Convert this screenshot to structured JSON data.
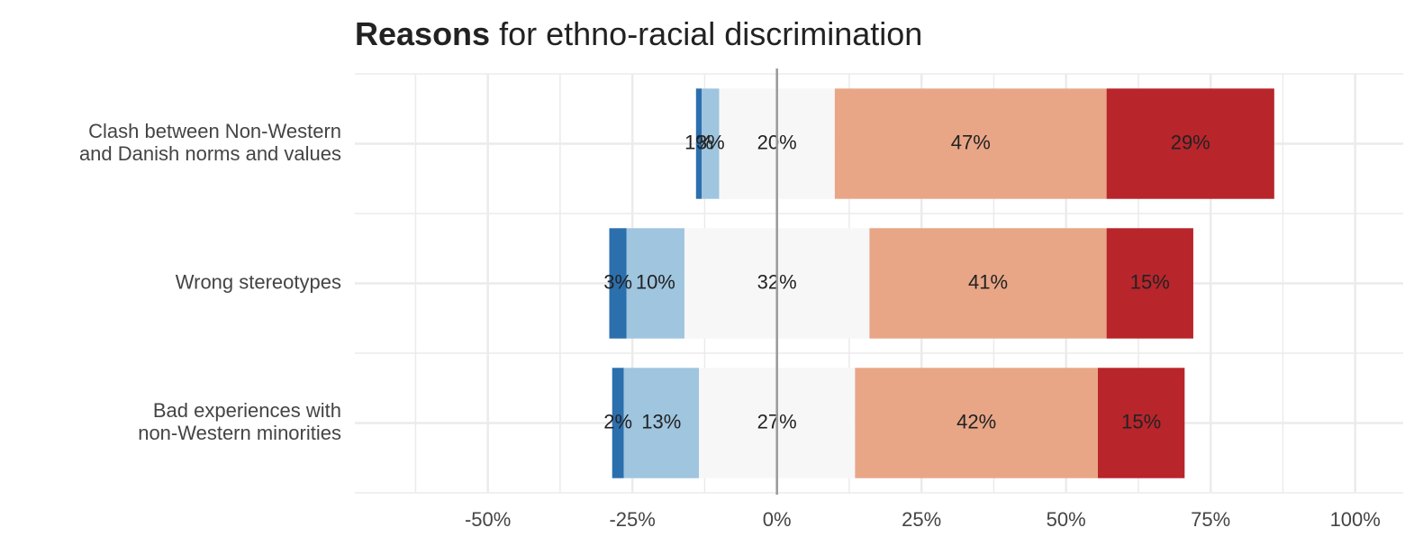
{
  "chart_data": {
    "type": "diverging_bar",
    "title_bold": "Reasons",
    "title": "for ethno-racial discrimination",
    "categories": [
      [
        "Clash between Non-Western",
        "and Danish norms and values"
      ],
      [
        "Wrong stereotypes"
      ],
      [
        "Bad experiences with",
        "non-Western minorities"
      ]
    ],
    "series": [
      {
        "color": "#2c6fad",
        "values": [
          1,
          3,
          2
        ],
        "value_labels": [
          "1%",
          "3%",
          "2%"
        ]
      },
      {
        "color": "#9fc5df",
        "values": [
          3,
          10,
          13
        ],
        "value_labels": [
          "3%",
          "10%",
          "13%"
        ]
      },
      {
        "color": "#f7f7f7",
        "values": [
          20,
          32,
          27
        ],
        "value_labels": [
          "20%",
          "32%",
          "27%"
        ]
      },
      {
        "color": "#e8a687",
        "values": [
          47,
          41,
          42
        ],
        "value_labels": [
          "47%",
          "41%",
          "42%"
        ]
      },
      {
        "color": "#b8252b",
        "values": [
          29,
          15,
          15
        ],
        "value_labels": [
          "29%",
          "15%",
          "15%"
        ]
      }
    ],
    "xlim": [
      -73,
      108.3
    ],
    "xticks": [
      {
        "value": -50,
        "label": "-50%"
      },
      {
        "value": -25,
        "label": "-25%"
      },
      {
        "value": 0,
        "label": "0%"
      },
      {
        "value": 25,
        "label": "25%"
      },
      {
        "value": 50,
        "label": "50%"
      },
      {
        "value": 75,
        "label": "75%"
      },
      {
        "value": 100,
        "label": "100%"
      }
    ],
    "grid": true
  }
}
